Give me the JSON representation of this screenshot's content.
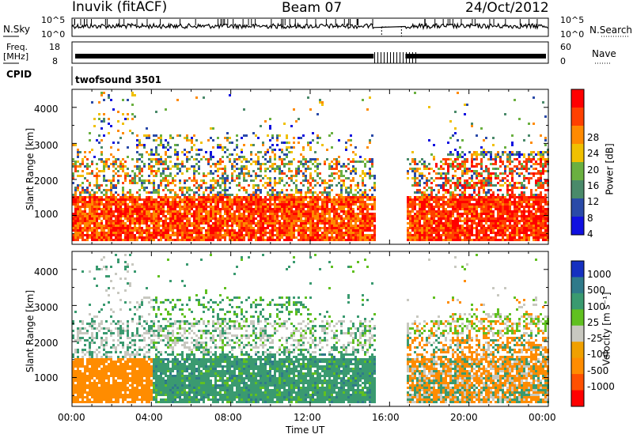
{
  "header": {
    "station": "Inuvik (fitACF)",
    "beam": "Beam 07",
    "date": "24/Oct/2012"
  },
  "noise_panel": {
    "left_label": "N.Sky",
    "right_label": "N.Search",
    "left_ticks": [
      "10^5",
      "10^0"
    ],
    "right_ticks": [
      "10^5",
      "10^0"
    ]
  },
  "freq_panel": {
    "left_label_1": "Freq.",
    "left_label_2": "[MHz]",
    "left_ticks": [
      "18",
      "8"
    ],
    "right_label": "Nave",
    "right_ticks": [
      "60",
      "0"
    ]
  },
  "cpid_panel": {
    "label": "CPID",
    "value": "twofsound 3501"
  },
  "colors": {
    "power": [
      "#1010e0",
      "#2a4aa8",
      "#4a8a6a",
      "#6ab040",
      "#f0c000",
      "#ff8a00",
      "#ff4000",
      "#ff0000"
    ],
    "velocity": [
      "#ff0000",
      "#ff5000",
      "#ff8c00",
      "#f0a000",
      "#c8c8c0",
      "#60c020",
      "#3a9a70",
      "#2f7a8a",
      "#1530c0"
    ]
  },
  "chart_data": [
    {
      "type": "heatmap",
      "quantity": "Power",
      "ylabel": "Slant Range [km]",
      "xlim_hours": [
        0,
        24
      ],
      "ylim_km": [
        200,
        4500
      ],
      "yticks": [
        "1000",
        "2000",
        "3000",
        "4000"
      ],
      "colorbar_label": "Power [dB]",
      "colorbar_ticks": [
        "4",
        "8",
        "12",
        "16",
        "20",
        "24",
        "28"
      ],
      "data_gap_UT": [
        "15:15",
        "16:45"
      ]
    },
    {
      "type": "heatmap",
      "quantity": "Velocity",
      "ylabel": "Slant Range [km]",
      "xlabel": "Time UT",
      "xticks": [
        "00:00",
        "04:00",
        "08:00",
        "12:00",
        "16:00",
        "20:00",
        "00:00"
      ],
      "xlim_hours": [
        0,
        24
      ],
      "ylim_km": [
        200,
        4500
      ],
      "yticks": [
        "1000",
        "2000",
        "3000",
        "4000"
      ],
      "colorbar_label": "Velocity [m s⁻¹]",
      "colorbar_ticks": [
        "1000",
        "500",
        "100",
        "25",
        "-25",
        "-100",
        "-500",
        "-1000"
      ],
      "data_gap_UT": [
        "15:15",
        "16:45"
      ]
    }
  ]
}
